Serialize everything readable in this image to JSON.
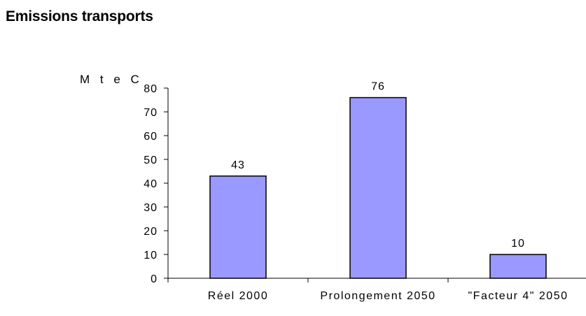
{
  "title": "Emissions transports",
  "chart_data": {
    "type": "bar",
    "title": "Emissions transports",
    "ylabel": "M t e C",
    "xlabel": "",
    "categories": [
      "Réel 2000",
      "Prolongement 2050",
      "\"Facteur 4\" 2050"
    ],
    "values": [
      43,
      76,
      10
    ],
    "data_labels": [
      "43",
      "76",
      "10"
    ],
    "ylim": [
      0,
      80
    ],
    "yticks": [
      0,
      10,
      20,
      30,
      40,
      50,
      60,
      70,
      80
    ],
    "grid": false,
    "legend": "none",
    "bar_color": "#9999ff",
    "bar_edge_color": "#000000"
  }
}
